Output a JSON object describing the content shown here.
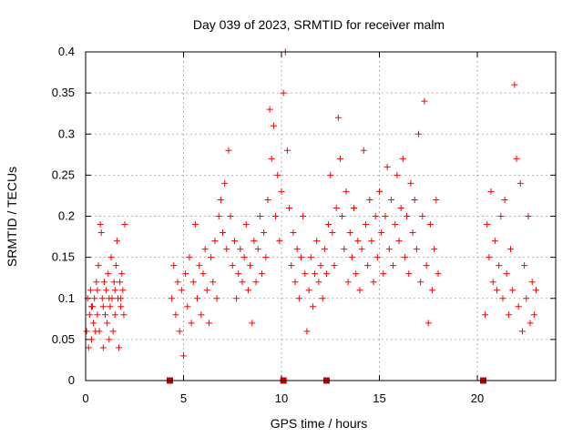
{
  "chart_data": {
    "type": "scatter",
    "title": "Day 039 of 2023, SRMTID for receiver malm",
    "xlabel": "GPS time / hours",
    "ylabel": "SRMTID / TECUs",
    "xlim": [
      0,
      24
    ],
    "ylim": [
      0,
      0.4
    ],
    "grid": true,
    "marker": "+",
    "color": "#ff0000",
    "xticks": [
      0,
      5,
      10,
      15,
      20
    ],
    "xtick_labels": [
      "0",
      "5",
      "10",
      "15",
      "20"
    ],
    "yticks": [
      0,
      0.05,
      0.1,
      0.15,
      0.2,
      0.25,
      0.3,
      0.35,
      0.4
    ],
    "ytick_labels": [
      "0",
      "0.05",
      "0.1",
      "0.15",
      "0.2",
      "0.25",
      "0.3",
      "0.35",
      "0.4"
    ],
    "zero_markers_x": [
      4.3,
      10.1,
      12.3,
      20.3
    ],
    "series": [
      {
        "name": "SRMTID",
        "points": [
          [
            0.05,
            0.06
          ],
          [
            0.1,
            0.1
          ],
          [
            0.15,
            0.04
          ],
          [
            0.2,
            0.08
          ],
          [
            0.25,
            0.11
          ],
          [
            0.3,
            0.05
          ],
          [
            0.35,
            0.09
          ],
          [
            0.4,
            0.07
          ],
          [
            0.45,
            0.1
          ],
          [
            0.5,
            0.06
          ],
          [
            0.55,
            0.12
          ],
          [
            0.6,
            0.08
          ],
          [
            0.65,
            0.14
          ],
          [
            0.7,
            0.06
          ],
          [
            0.75,
            0.19
          ],
          [
            0.8,
            0.18
          ],
          [
            0.85,
            0.1
          ],
          [
            0.9,
            0.04
          ],
          [
            0.95,
            0.12
          ],
          [
            1.0,
            0.08
          ],
          [
            1.05,
            0.11
          ],
          [
            1.1,
            0.07
          ],
          [
            1.15,
            0.13
          ],
          [
            1.2,
            0.05
          ],
          [
            1.25,
            0.09
          ],
          [
            1.3,
            0.15
          ],
          [
            1.35,
            0.1
          ],
          [
            1.4,
            0.06
          ],
          [
            1.45,
            0.12
          ],
          [
            1.5,
            0.08
          ],
          [
            1.55,
            0.14
          ],
          [
            1.6,
            0.17
          ],
          [
            1.65,
            0.1
          ],
          [
            1.7,
            0.04
          ],
          [
            1.75,
            0.12
          ],
          [
            1.8,
            0.09
          ],
          [
            1.85,
            0.13
          ],
          [
            1.9,
            0.11
          ],
          [
            1.95,
            0.08
          ],
          [
            2.0,
            0.19
          ],
          [
            0.3,
            0.09
          ],
          [
            0.6,
            0.11
          ],
          [
            0.9,
            0.09
          ],
          [
            1.2,
            0.1
          ],
          [
            1.5,
            0.11
          ],
          [
            1.8,
            0.1
          ],
          [
            4.4,
            0.1
          ],
          [
            4.5,
            0.14
          ],
          [
            4.6,
            0.08
          ],
          [
            4.7,
            0.12
          ],
          [
            4.8,
            0.06
          ],
          [
            4.9,
            0.11
          ],
          [
            5.0,
            0.03
          ],
          [
            5.1,
            0.13
          ],
          [
            5.2,
            0.09
          ],
          [
            5.3,
            0.15
          ],
          [
            5.4,
            0.07
          ],
          [
            5.5,
            0.12
          ],
          [
            5.6,
            0.19
          ],
          [
            5.7,
            0.1
          ],
          [
            5.8,
            0.14
          ],
          [
            5.9,
            0.08
          ],
          [
            6.0,
            0.13
          ],
          [
            6.1,
            0.16
          ],
          [
            6.2,
            0.11
          ],
          [
            6.3,
            0.07
          ],
          [
            6.4,
            0.15
          ],
          [
            6.5,
            0.12
          ],
          [
            6.6,
            0.17
          ],
          [
            6.7,
            0.1
          ],
          [
            6.8,
            0.2
          ],
          [
            6.9,
            0.22
          ],
          [
            7.0,
            0.18
          ],
          [
            7.1,
            0.24
          ],
          [
            7.2,
            0.16
          ],
          [
            7.3,
            0.28
          ],
          [
            7.4,
            0.2
          ],
          [
            7.5,
            0.14
          ],
          [
            7.6,
            0.17
          ],
          [
            7.7,
            0.1
          ],
          [
            7.8,
            0.13
          ],
          [
            7.9,
            0.16
          ],
          [
            8.0,
            0.12
          ],
          [
            8.1,
            0.15
          ],
          [
            8.2,
            0.19
          ],
          [
            8.3,
            0.11
          ],
          [
            8.4,
            0.14
          ],
          [
            8.5,
            0.07
          ],
          [
            8.6,
            0.17
          ],
          [
            8.7,
            0.12
          ],
          [
            8.8,
            0.16
          ],
          [
            8.9,
            0.2
          ],
          [
            9.0,
            0.13
          ],
          [
            9.1,
            0.18
          ],
          [
            9.2,
            0.15
          ],
          [
            9.3,
            0.22
          ],
          [
            9.4,
            0.33
          ],
          [
            9.5,
            0.27
          ],
          [
            9.6,
            0.31
          ],
          [
            9.7,
            0.2
          ],
          [
            9.8,
            0.25
          ],
          [
            9.9,
            0.17
          ],
          [
            10.0,
            0.23
          ],
          [
            10.1,
            0.35
          ],
          [
            10.2,
            0.4
          ],
          [
            10.3,
            0.28
          ],
          [
            10.4,
            0.21
          ],
          [
            10.5,
            0.14
          ],
          [
            10.6,
            0.18
          ],
          [
            10.7,
            0.12
          ],
          [
            10.8,
            0.16
          ],
          [
            10.9,
            0.1
          ],
          [
            11.0,
            0.15
          ],
          [
            11.1,
            0.2
          ],
          [
            11.2,
            0.13
          ],
          [
            11.3,
            0.06
          ],
          [
            11.4,
            0.11
          ],
          [
            11.5,
            0.15
          ],
          [
            11.6,
            0.09
          ],
          [
            11.7,
            0.13
          ],
          [
            11.8,
            0.17
          ],
          [
            11.9,
            0.12
          ],
          [
            12.0,
            0.14
          ],
          [
            12.1,
            0.1
          ],
          [
            12.2,
            0.16
          ],
          [
            12.3,
            0.13
          ],
          [
            12.4,
            0.19
          ],
          [
            12.5,
            0.25
          ],
          [
            12.6,
            0.18
          ],
          [
            12.7,
            0.14
          ],
          [
            12.8,
            0.21
          ],
          [
            12.9,
            0.32
          ],
          [
            13.0,
            0.27
          ],
          [
            13.1,
            0.2
          ],
          [
            13.2,
            0.16
          ],
          [
            13.3,
            0.23
          ],
          [
            13.4,
            0.12
          ],
          [
            13.5,
            0.18
          ],
          [
            13.6,
            0.15
          ],
          [
            13.7,
            0.21
          ],
          [
            13.8,
            0.13
          ],
          [
            13.9,
            0.17
          ],
          [
            14.0,
            0.11
          ],
          [
            14.1,
            0.16
          ],
          [
            14.2,
            0.28
          ],
          [
            14.3,
            0.19
          ],
          [
            14.4,
            0.14
          ],
          [
            14.5,
            0.22
          ],
          [
            14.6,
            0.17
          ],
          [
            14.7,
            0.12
          ],
          [
            14.8,
            0.2
          ],
          [
            14.9,
            0.15
          ],
          [
            15.0,
            0.23
          ],
          [
            15.1,
            0.18
          ],
          [
            15.2,
            0.13
          ],
          [
            15.3,
            0.2
          ],
          [
            15.4,
            0.26
          ],
          [
            15.5,
            0.16
          ],
          [
            15.6,
            0.22
          ],
          [
            15.7,
            0.14
          ],
          [
            15.8,
            0.19
          ],
          [
            15.9,
            0.25
          ],
          [
            16.0,
            0.17
          ],
          [
            16.1,
            0.21
          ],
          [
            16.2,
            0.27
          ],
          [
            16.3,
            0.15
          ],
          [
            16.4,
            0.2
          ],
          [
            16.5,
            0.13
          ],
          [
            16.6,
            0.24
          ],
          [
            16.7,
            0.18
          ],
          [
            16.8,
            0.22
          ],
          [
            16.9,
            0.16
          ],
          [
            17.0,
            0.3
          ],
          [
            17.1,
            0.12
          ],
          [
            17.2,
            0.2
          ],
          [
            17.3,
            0.34
          ],
          [
            17.4,
            0.14
          ],
          [
            17.5,
            0.07
          ],
          [
            17.6,
            0.19
          ],
          [
            17.7,
            0.11
          ],
          [
            17.8,
            0.16
          ],
          [
            17.9,
            0.22
          ],
          [
            18.0,
            0.13
          ],
          [
            20.4,
            0.08
          ],
          [
            20.5,
            0.19
          ],
          [
            20.6,
            0.15
          ],
          [
            20.7,
            0.23
          ],
          [
            20.8,
            0.12
          ],
          [
            20.9,
            0.17
          ],
          [
            21.0,
            0.11
          ],
          [
            21.1,
            0.14
          ],
          [
            21.2,
            0.2
          ],
          [
            21.3,
            0.1
          ],
          [
            21.4,
            0.22
          ],
          [
            21.5,
            0.13
          ],
          [
            21.6,
            0.08
          ],
          [
            21.7,
            0.16
          ],
          [
            21.8,
            0.11
          ],
          [
            21.9,
            0.36
          ],
          [
            22.0,
            0.27
          ],
          [
            22.1,
            0.09
          ],
          [
            22.2,
            0.24
          ],
          [
            22.3,
            0.06
          ],
          [
            22.4,
            0.14
          ],
          [
            22.5,
            0.1
          ],
          [
            22.6,
            0.2
          ],
          [
            22.7,
            0.07
          ],
          [
            22.8,
            0.12
          ],
          [
            22.9,
            0.08
          ],
          [
            23.0,
            0.11
          ]
        ]
      }
    ]
  }
}
